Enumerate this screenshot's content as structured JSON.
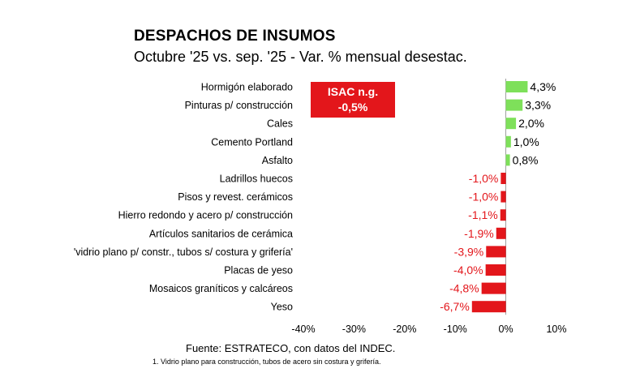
{
  "header": {
    "title": "DESPACHOS DE INSUMOS",
    "subtitle": "Octubre '25 vs.  sep. '25 - Var. % mensual desestac."
  },
  "badge": {
    "line1": "ISAC n.g.",
    "line2": "-0,5%"
  },
  "footer": {
    "source": "Fuente: ESTRATECO, con datos del INDEC.",
    "note": "1. Vidrio plano para construcción, tubos de acero sin costura y grifería."
  },
  "colors": {
    "positive": "#7ee05a",
    "negative": "#e3161b",
    "axis": "#888888"
  },
  "chart_data": {
    "type": "bar",
    "orientation": "horizontal",
    "title": "DESPACHOS DE INSUMOS",
    "xlim": [
      -40,
      10
    ],
    "ticks": [
      {
        "value": -40,
        "label": "-40%"
      },
      {
        "value": -30,
        "label": "-30%"
      },
      {
        "value": -20,
        "label": "-20%"
      },
      {
        "value": -10,
        "label": "-10%"
      },
      {
        "value": 0,
        "label": "0%"
      },
      {
        "value": 10,
        "label": "10%"
      }
    ],
    "categories": [
      "Hormigón elaborado",
      "Pinturas p/ construcción",
      "Cales",
      "Cemento Portland",
      "Asfalto",
      "Ladrillos huecos",
      "Pisos y revest. cerámicos",
      "Hierro redondo y acero p/ construcción",
      "Artículos sanitarios de cerámica",
      "'vidrio plano p/ constr., tubos s/ costura y grifería'",
      "Placas de yeso",
      "Mosaicos graníticos y calcáreos",
      "Yeso"
    ],
    "values": [
      4.3,
      3.3,
      2.0,
      1.0,
      0.8,
      -1.0,
      -1.0,
      -1.1,
      -1.9,
      -3.9,
      -4.0,
      -4.8,
      -6.7
    ],
    "labels": [
      "4,3%",
      "3,3%",
      "2,0%",
      "1,0%",
      "0,8%",
      "-1,0%",
      "-1,0%",
      "-1,1%",
      "-1,9%",
      "-3,9%",
      "-4,0%",
      "-4,8%",
      "-6,7%"
    ]
  }
}
